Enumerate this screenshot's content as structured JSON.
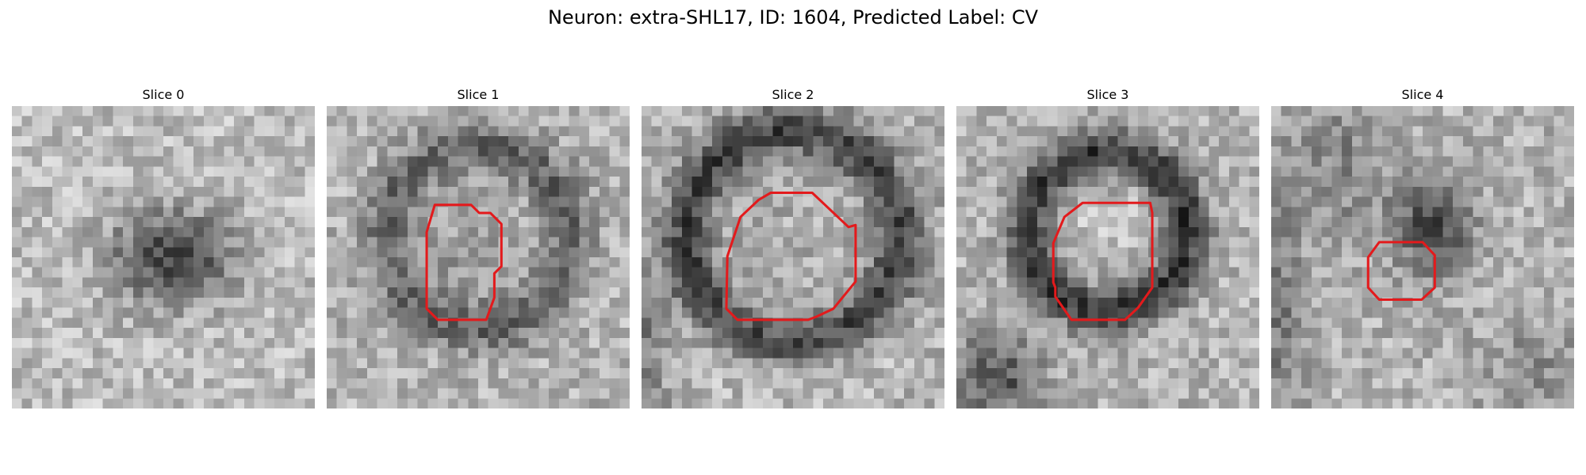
{
  "figure": {
    "title": "Neuron: extra-SHL17, ID: 1604, Predicted Label: CV"
  },
  "panels": [
    {
      "title": "Slice 0",
      "has_contour": false
    },
    {
      "title": "Slice 1",
      "has_contour": true
    },
    {
      "title": "Slice 2",
      "has_contour": true
    },
    {
      "title": "Slice 3",
      "has_contour": true
    },
    {
      "title": "Slice 4",
      "has_contour": true
    }
  ],
  "colors": {
    "contour": "#e31a1c",
    "background": "#ffffff"
  }
}
